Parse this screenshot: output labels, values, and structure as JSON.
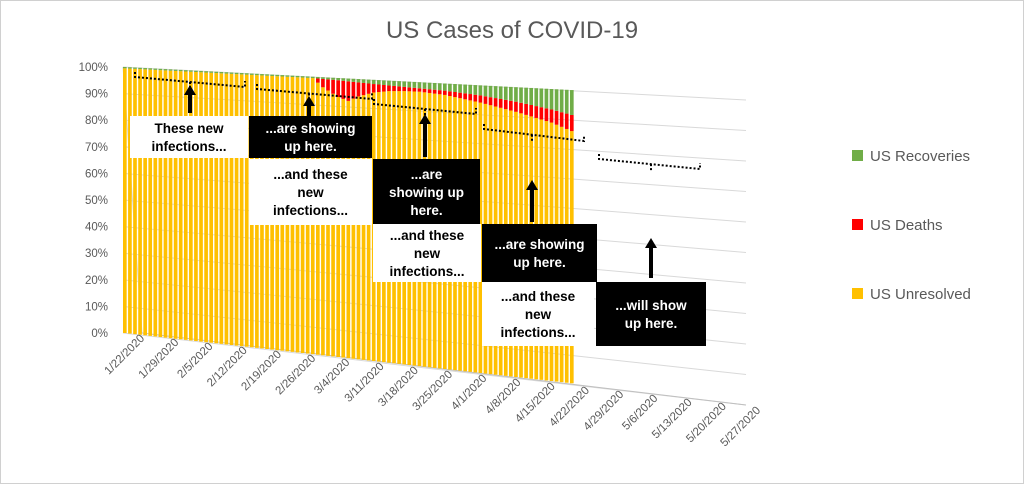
{
  "chart_data": {
    "type": "bar",
    "stacked": true,
    "percent_stacked": true,
    "title": "US Cases of COVID-19",
    "y_ticks": [
      "0%",
      "10%",
      "20%",
      "30%",
      "40%",
      "50%",
      "60%",
      "70%",
      "80%",
      "90%",
      "100%"
    ],
    "ylim": [
      0,
      100
    ],
    "x_ticks": [
      "1/22/2020",
      "1/29/2020",
      "2/5/2020",
      "2/12/2020",
      "2/19/2020",
      "2/26/2020",
      "3/4/2020",
      "3/11/2020",
      "3/18/2020",
      "3/25/2020",
      "4/1/2020",
      "4/8/2020",
      "4/15/2020",
      "4/22/2020",
      "4/29/2020",
      "5/6/2020",
      "5/13/2020",
      "5/20/2020",
      "5/27/2020"
    ],
    "x_range": [
      "1/22/2020",
      "5/27/2020"
    ],
    "data_start": "1/22/2020",
    "data_end": "4/19/2020",
    "series": [
      {
        "name": "US Recoveries",
        "color": "#70ad47"
      },
      {
        "name": "US Deaths",
        "color": "#ff0000"
      },
      {
        "name": "US Unresolved",
        "color": "#ffc000"
      }
    ],
    "deaths_pct": {
      "dates": [
        "1/22/2020",
        "2/28/2020",
        "3/1/2020",
        "3/4/2020",
        "3/6/2020",
        "3/8/2020",
        "3/11/2020",
        "3/14/2020",
        "3/17/2020",
        "3/20/2020",
        "3/25/2020",
        "4/1/2020",
        "4/8/2020",
        "4/15/2020",
        "4/19/2020"
      ],
      "values": [
        0,
        0,
        3,
        6,
        7,
        5,
        3,
        2,
        1.5,
        1.2,
        1.5,
        2.5,
        3.5,
        4.5,
        5.5
      ]
    },
    "recoveries_pct": {
      "dates": [
        "1/22/2020",
        "2/28/2020",
        "3/4/2020",
        "3/11/2020",
        "3/18/2020",
        "3/25/2020",
        "4/1/2020",
        "4/8/2020",
        "4/15/2020",
        "4/19/2020"
      ],
      "values": [
        0.5,
        0.5,
        0.8,
        1.5,
        2,
        2.5,
        3.5,
        5,
        7,
        8.5
      ]
    },
    "legend_position": "right",
    "grid": true
  },
  "annotations": [
    {
      "lines": [
        "These new",
        "infections..."
      ],
      "style": "white"
    },
    {
      "lines": [
        "...are showing",
        "up here."
      ],
      "style": "black"
    },
    {
      "lines": [
        "...and these",
        "new",
        "infections..."
      ],
      "style": "white"
    },
    {
      "lines": [
        "...are",
        "showing up",
        "here."
      ],
      "style": "black"
    },
    {
      "lines": [
        "...and these",
        "new",
        "infections..."
      ],
      "style": "white"
    },
    {
      "lines": [
        "...are showing",
        "up here."
      ],
      "style": "black"
    },
    {
      "lines": [
        "...and these",
        "new",
        "infections..."
      ],
      "style": "white"
    },
    {
      "lines": [
        "...will show",
        "up here."
      ],
      "style": "black"
    }
  ]
}
